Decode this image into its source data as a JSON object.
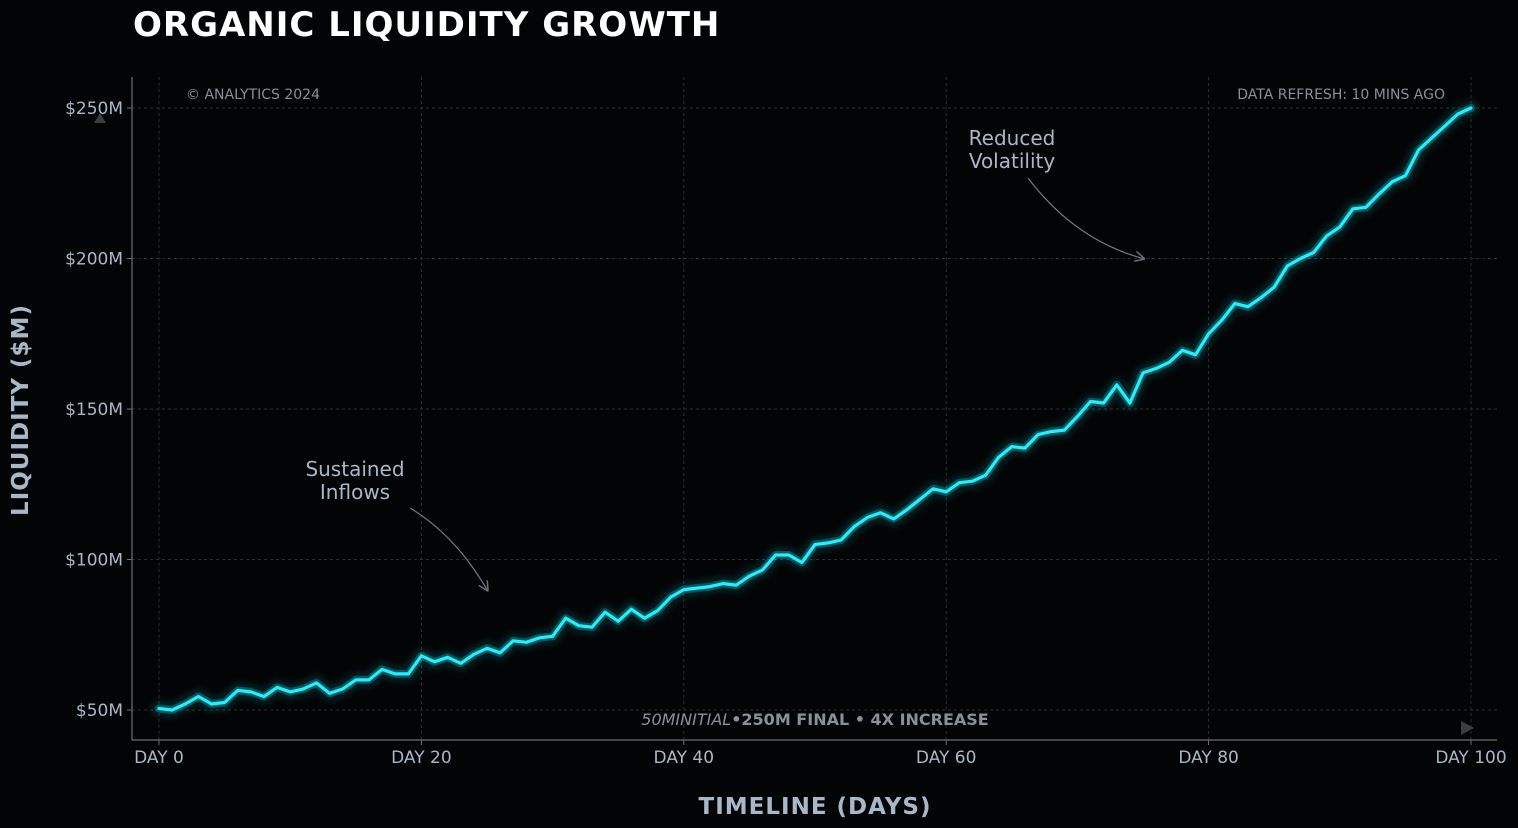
{
  "chart_data": {
    "type": "line",
    "title": "ORGANIC LIQUIDITY GROWTH",
    "xlabel": "TIMELINE (DAYS)",
    "ylabel": "LIQUIDITY ($M)",
    "xlim": [
      -2,
      102
    ],
    "ylim": [
      40,
      260
    ],
    "x_ticks": [
      0,
      20,
      40,
      60,
      80,
      100
    ],
    "x_tick_labels": [
      "DAY 0",
      "DAY 20",
      "DAY 40",
      "DAY 60",
      "DAY 80",
      "DAY 100"
    ],
    "y_ticks": [
      50,
      100,
      150,
      200,
      250
    ],
    "y_tick_labels": [
      "$50M",
      "$100M",
      "$150M",
      "$200M",
      "$250M"
    ],
    "line_color": "#22f0ff",
    "series": [
      {
        "name": "Liquidity",
        "x": [
          0,
          1,
          2,
          3,
          4,
          5,
          6,
          7,
          8,
          9,
          10,
          11,
          12,
          13,
          14,
          15,
          16,
          17,
          18,
          19,
          20,
          21,
          22,
          23,
          24,
          25,
          26,
          27,
          28,
          29,
          30,
          31,
          32,
          33,
          34,
          35,
          36,
          37,
          38,
          39,
          40,
          41,
          42,
          43,
          44,
          45,
          46,
          47,
          48,
          49,
          50,
          51,
          52,
          53,
          54,
          55,
          56,
          57,
          58,
          59,
          60,
          61,
          62,
          63,
          64,
          65,
          66,
          67,
          68,
          69,
          70,
          71,
          72,
          73,
          74,
          75,
          76,
          77,
          78,
          79,
          80,
          81,
          82,
          83,
          84,
          85,
          86,
          87,
          88,
          89,
          90,
          91,
          92,
          93,
          94,
          95,
          96,
          97,
          98,
          99,
          100
        ],
        "values": [
          50.5,
          50,
          52,
          54.5,
          52,
          52.5,
          56.5,
          56,
          54.5,
          57.5,
          56,
          57,
          59,
          55.5,
          57,
          60,
          60,
          63.5,
          62,
          62,
          68,
          66,
          67.5,
          65.5,
          68.5,
          70.5,
          69,
          73,
          72.5,
          74,
          74.5,
          80.5,
          78,
          77.5,
          82.5,
          79.5,
          83.5,
          80.5,
          83,
          87.5,
          90,
          90.5,
          91,
          92,
          91.5,
          94.5,
          96.5,
          101.5,
          101.5,
          99,
          105,
          105.5,
          106.5,
          111,
          114,
          115.5,
          113.5,
          116.5,
          120,
          123.5,
          122.5,
          125.5,
          126,
          128,
          134,
          137.5,
          137,
          141.5,
          142.5,
          143,
          147.5,
          152.5,
          152,
          158,
          152,
          162,
          163.5,
          165.5,
          169.5,
          168,
          175,
          179.5,
          185,
          184,
          187,
          190.5,
          197.5,
          200,
          202,
          207.5,
          210.5,
          216.5,
          217,
          221.5,
          225.5,
          227.5,
          236,
          240,
          244,
          248,
          250
        ]
      }
    ],
    "annotations": [
      {
        "text_lines": [
          "Sustained",
          "Inflows"
        ],
        "target_x": 25,
        "target_y": 90
      },
      {
        "text_lines": [
          "Reduced",
          "Volatility"
        ],
        "target_x": 75,
        "target_y": 200
      }
    ],
    "corner_left": "© ANALYTICS 2024",
    "corner_right": "DATA REFRESH: 10 MINS AGO",
    "footer_initial": "50MINITIAL",
    "footer_final": "•250M FINAL • 4X INCREASE"
  }
}
